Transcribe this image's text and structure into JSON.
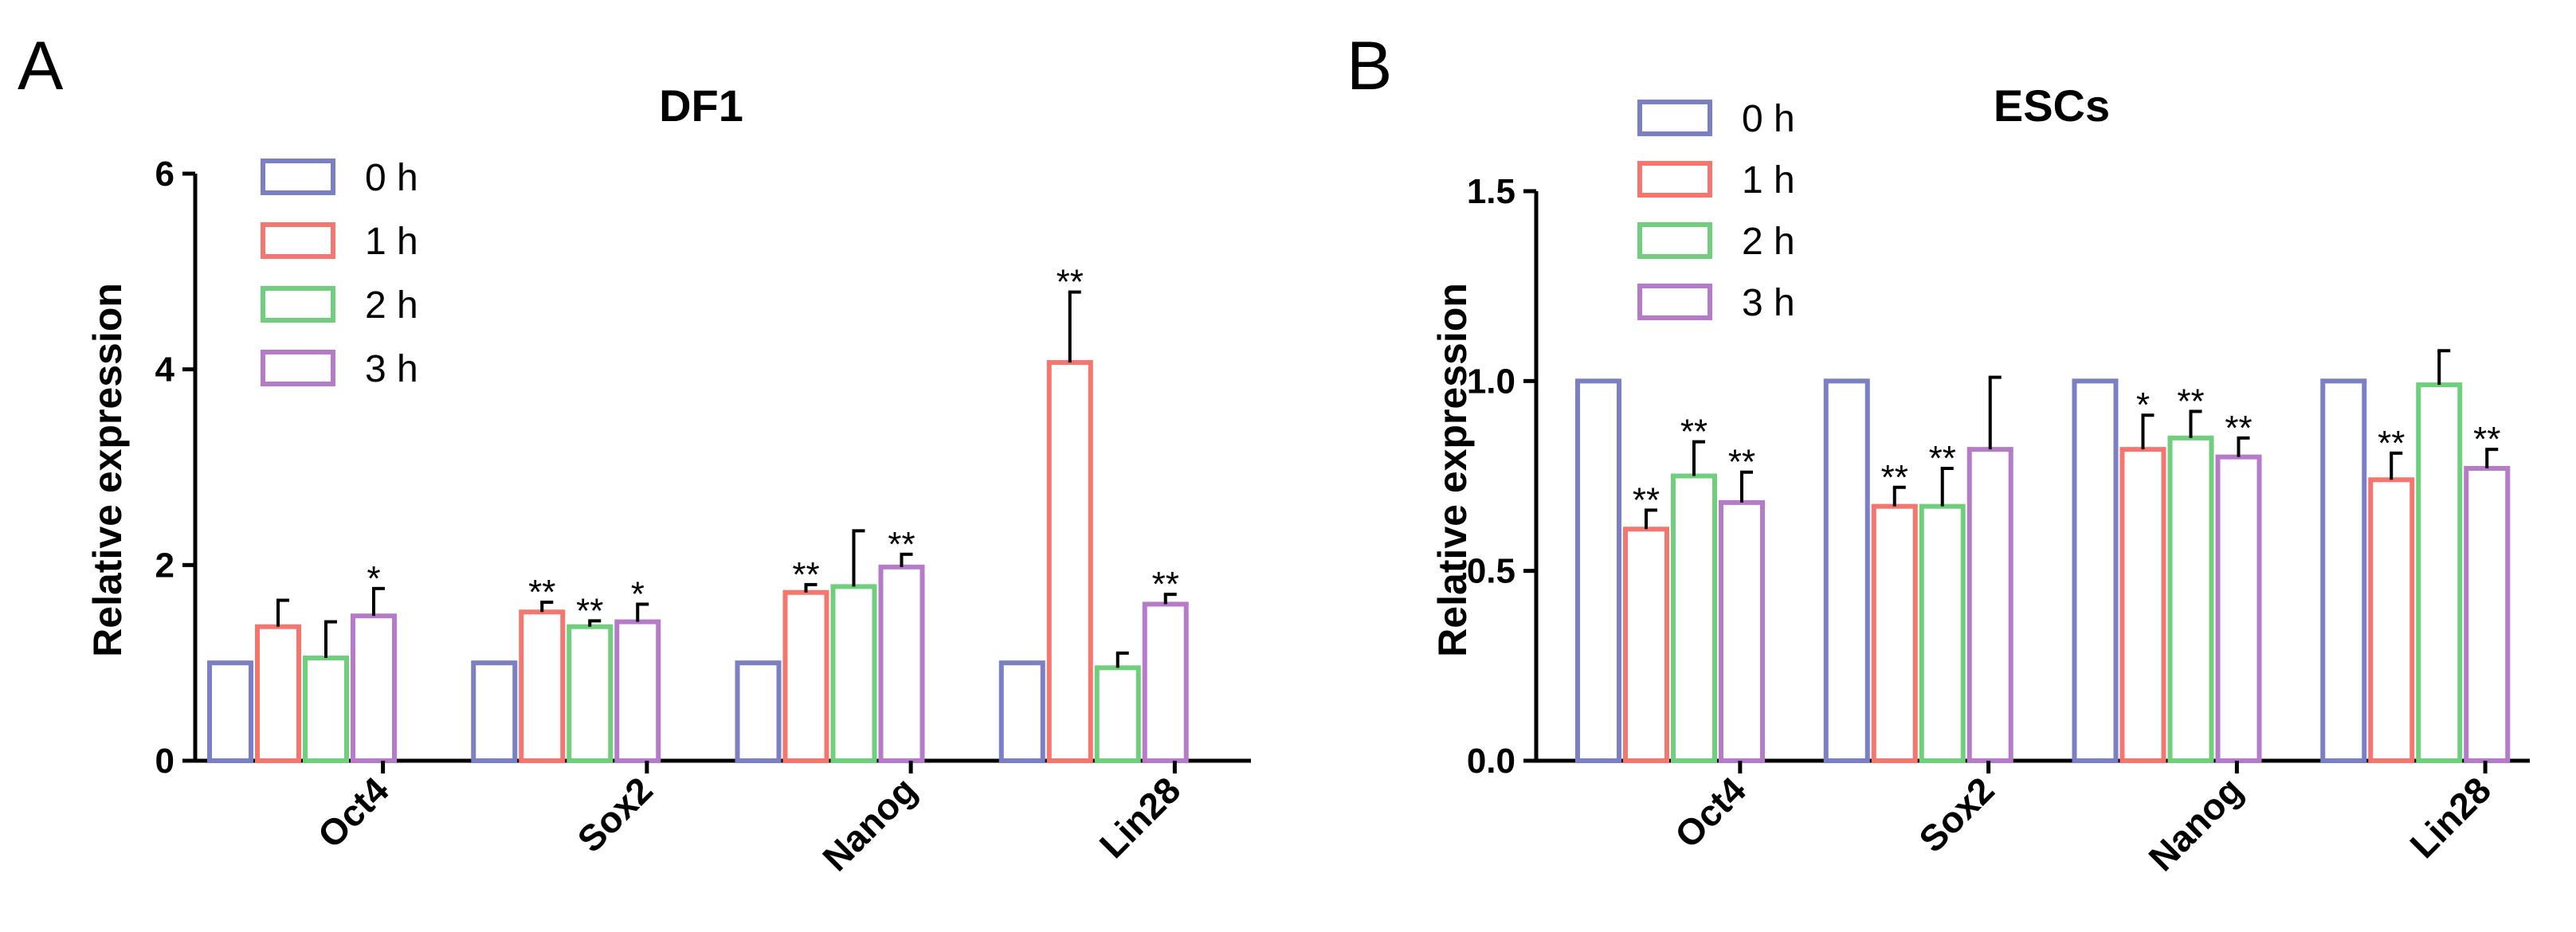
{
  "chart_data": [
    {
      "panel": "A",
      "type": "bar",
      "title": "DF1",
      "xlabel": "",
      "ylabel": "Relative expression",
      "categories": [
        "Oct4",
        "Sox2",
        "Nanog",
        "Lin28"
      ],
      "ylim": [
        0,
        6
      ],
      "yticks": [
        0,
        2,
        4,
        6
      ],
      "legend_position": "top-left",
      "series": [
        {
          "name": "0 h",
          "color": "#7B7FC4",
          "values": [
            1.0,
            1.0,
            1.0,
            1.0
          ],
          "errors": [
            0,
            0,
            0,
            0
          ],
          "significance": [
            "",
            "",
            "",
            ""
          ]
        },
        {
          "name": "1 h",
          "color": "#F4766E",
          "values": [
            1.37,
            1.52,
            1.72,
            4.07
          ],
          "errors": [
            0.27,
            0.1,
            0.08,
            0.72
          ],
          "significance": [
            "",
            "**",
            "**",
            "**"
          ]
        },
        {
          "name": "2 h",
          "color": "#6FCF7C",
          "values": [
            1.05,
            1.37,
            1.78,
            0.95
          ],
          "errors": [
            0.37,
            0.06,
            0.57,
            0.15
          ],
          "significance": [
            "",
            "**",
            "",
            ""
          ]
        },
        {
          "name": "3 h",
          "color": "#B57BC8",
          "values": [
            1.48,
            1.42,
            1.98,
            1.6
          ],
          "errors": [
            0.28,
            0.18,
            0.13,
            0.1
          ],
          "significance": [
            "*",
            "*",
            "**",
            "**"
          ]
        }
      ]
    },
    {
      "panel": "B",
      "type": "bar",
      "title": "ESCs",
      "xlabel": "",
      "ylabel": "Relative expression",
      "categories": [
        "Oct4",
        "Sox2",
        "Nanog",
        "Lin28"
      ],
      "ylim": [
        0,
        1.5
      ],
      "yticks": [
        0.0,
        0.5,
        1.0,
        1.5
      ],
      "legend_position": "top-left",
      "series": [
        {
          "name": "0 h",
          "color": "#7B7FC4",
          "values": [
            1.0,
            1.0,
            1.0,
            1.0
          ],
          "errors": [
            0,
            0,
            0,
            0
          ],
          "significance": [
            "",
            "",
            "",
            ""
          ]
        },
        {
          "name": "1 h",
          "color": "#F4766E",
          "values": [
            0.61,
            0.67,
            0.82,
            0.74
          ],
          "errors": [
            0.05,
            0.05,
            0.09,
            0.07
          ],
          "significance": [
            "**",
            "**",
            "*",
            "**"
          ]
        },
        {
          "name": "2 h",
          "color": "#6FCF7C",
          "values": [
            0.75,
            0.67,
            0.85,
            0.99
          ],
          "errors": [
            0.09,
            0.1,
            0.07,
            0.09
          ],
          "significance": [
            "**",
            "**",
            "**",
            ""
          ]
        },
        {
          "name": "3 h",
          "color": "#B57BC8",
          "values": [
            0.68,
            0.82,
            0.8,
            0.77
          ],
          "errors": [
            0.08,
            0.19,
            0.05,
            0.05
          ],
          "significance": [
            "**",
            "",
            "**",
            "**"
          ]
        }
      ]
    }
  ]
}
